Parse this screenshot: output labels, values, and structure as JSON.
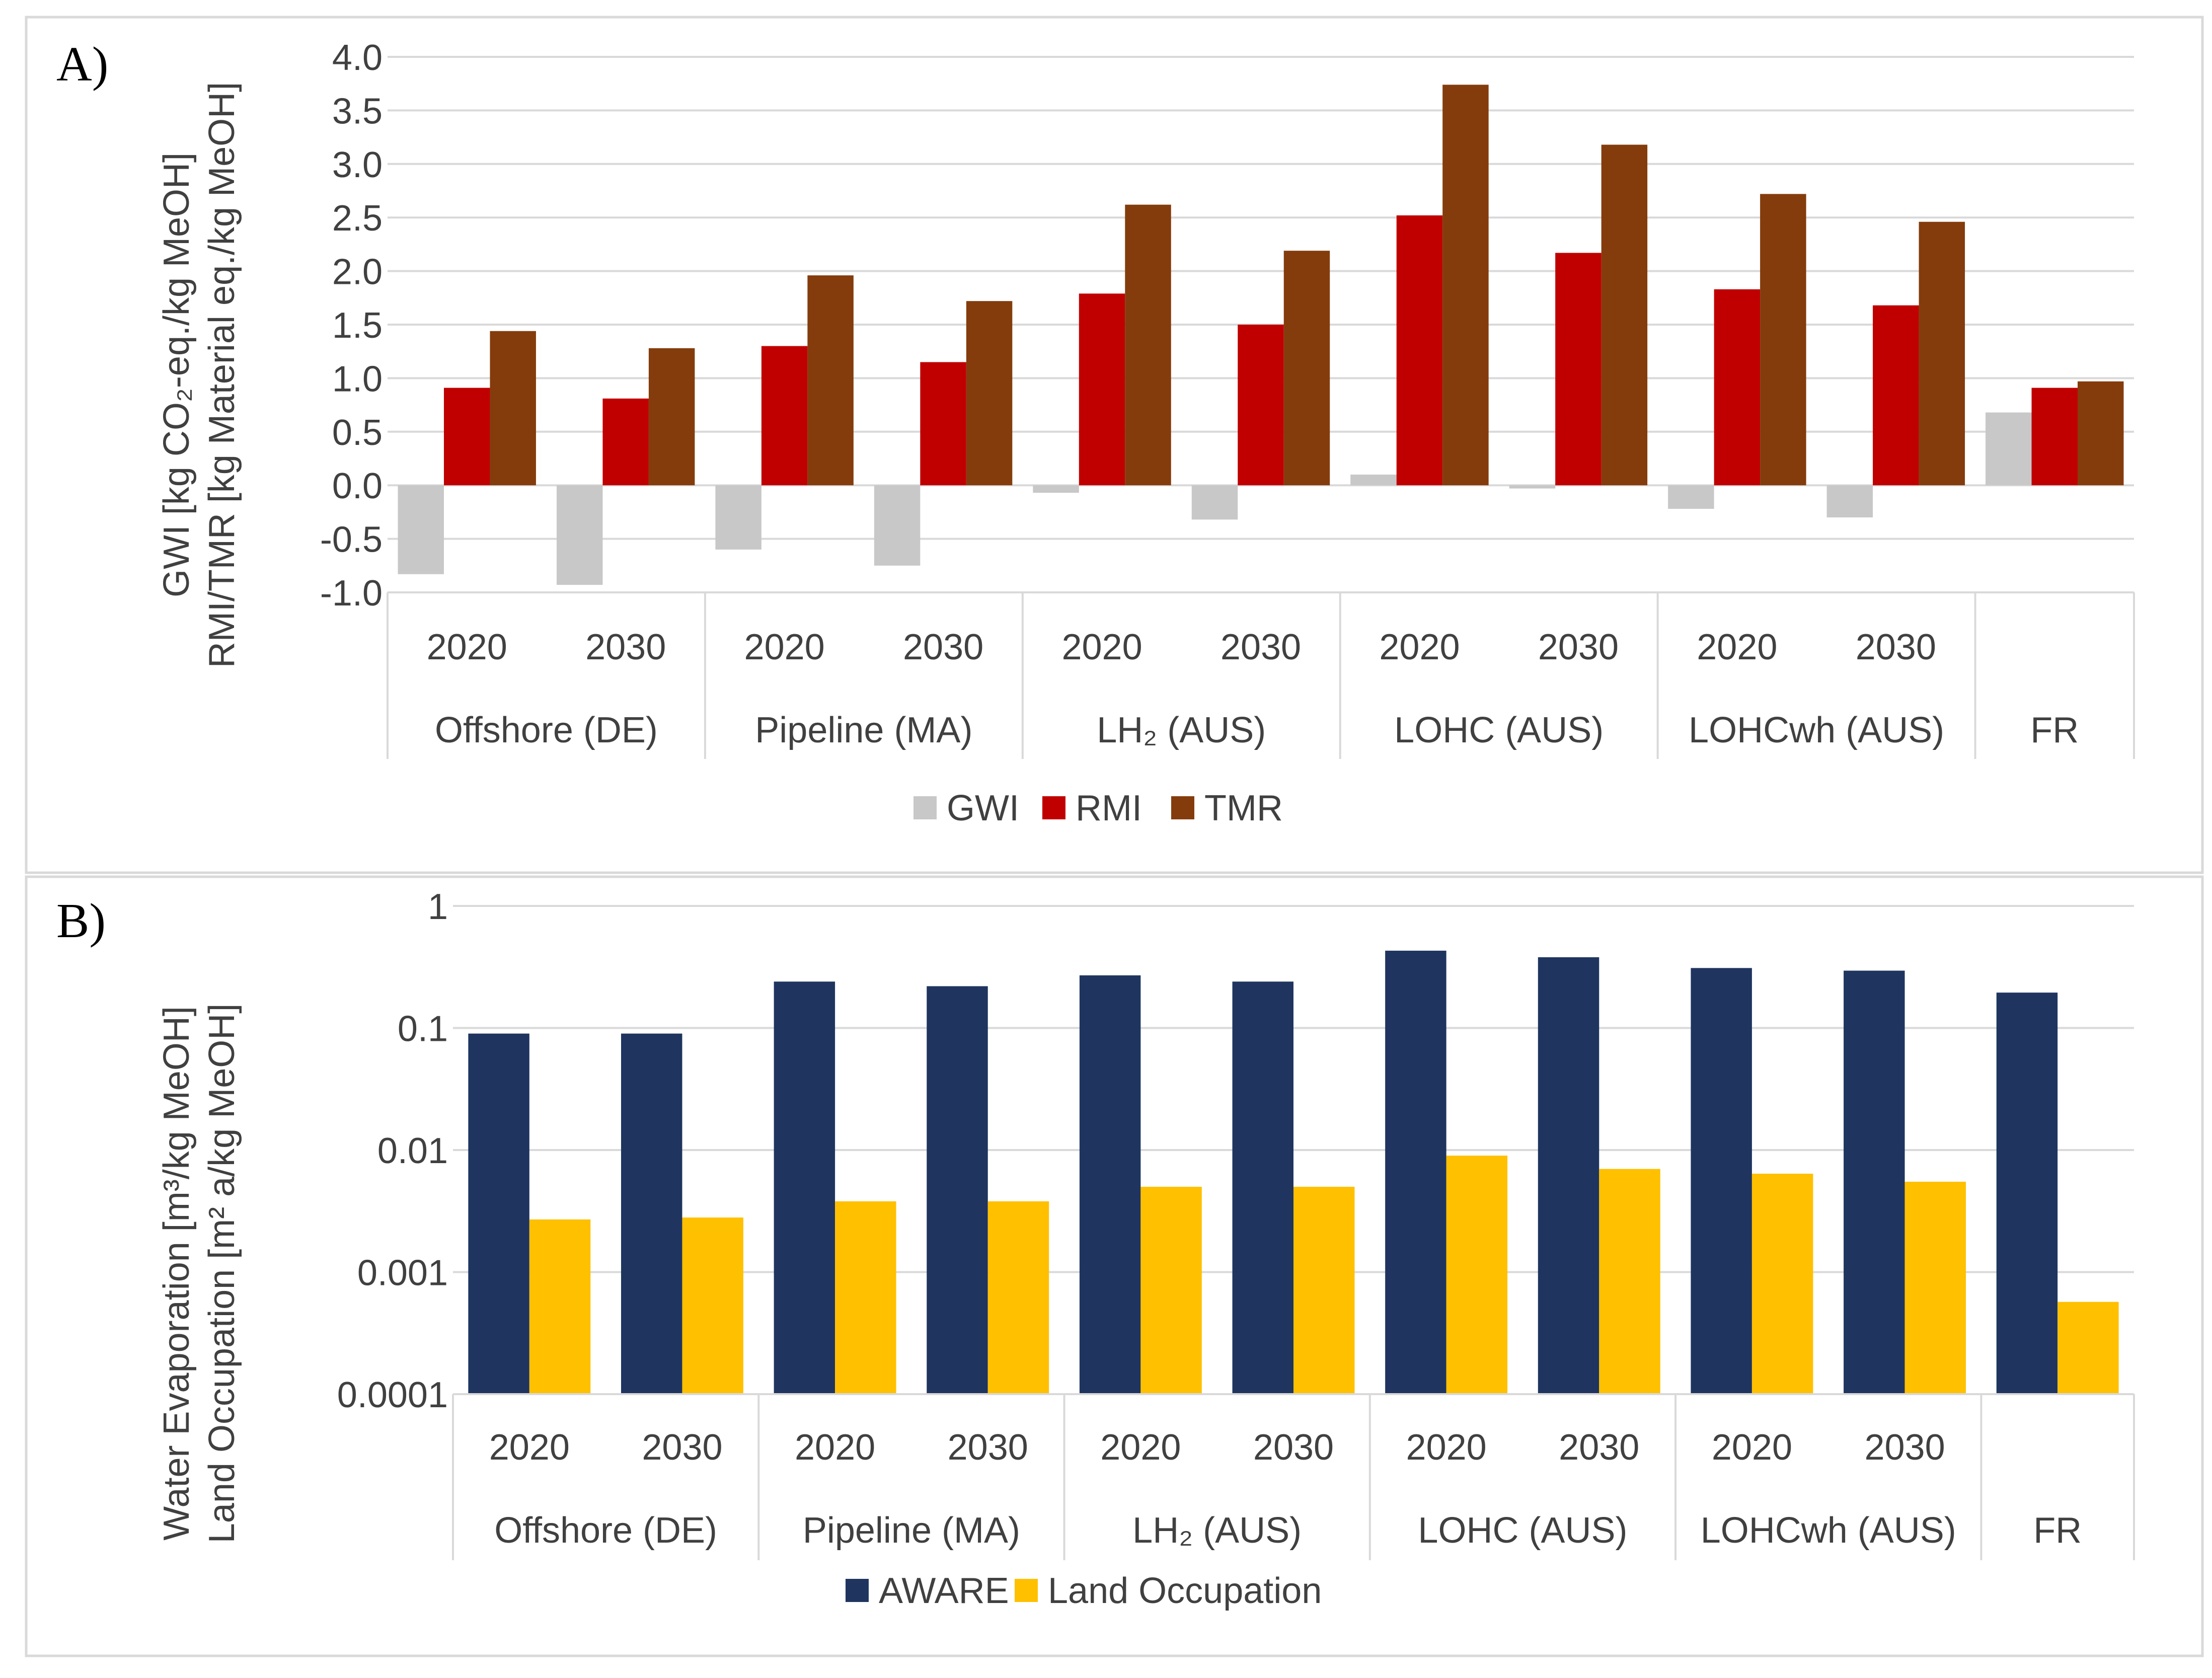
{
  "chart_data": [
    {
      "type": "bar",
      "panel_label": "A)",
      "ylabel_lines": [
        "GWI [kg CO₂-eq./kg MeOH]",
        "RMI/TMR [kg Material eq./kg MeOH]"
      ],
      "yticks": [
        "4.0",
        "3.5",
        "3.0",
        "2.5",
        "2.0",
        "1.5",
        "1.0",
        "0.5",
        "0.0",
        "-0.5",
        "-1.0"
      ],
      "ylim": [
        -1.0,
        4.0
      ],
      "grid": true,
      "groups": [
        {
          "label": "Offshore (DE)",
          "years": [
            "2020",
            "2030"
          ]
        },
        {
          "label": "Pipeline (MA)",
          "years": [
            "2020",
            "2030"
          ]
        },
        {
          "label": "LH₂ (AUS)",
          "years": [
            "2020",
            "2030"
          ]
        },
        {
          "label": "LOHC (AUS)",
          "years": [
            "2020",
            "2030"
          ]
        },
        {
          "label": "LOHCwh (AUS)",
          "years": [
            "2020",
            "2030"
          ]
        },
        {
          "label": "FR",
          "years": [
            ""
          ]
        }
      ],
      "series": [
        {
          "name": "GWI",
          "color": "#c8c8c8",
          "values": [
            -0.83,
            -0.93,
            -0.6,
            -0.75,
            -0.07,
            -0.32,
            0.1,
            -0.03,
            -0.22,
            -0.3,
            0.68
          ]
        },
        {
          "name": "RMI",
          "color": "#c00000",
          "values": [
            0.91,
            0.81,
            1.3,
            1.15,
            1.79,
            1.5,
            2.52,
            2.17,
            1.83,
            1.68,
            0.91
          ]
        },
        {
          "name": "TMR",
          "color": "#843c0c",
          "values": [
            1.44,
            1.28,
            1.96,
            1.72,
            2.62,
            2.19,
            3.74,
            3.18,
            2.72,
            2.46,
            0.97
          ]
        }
      ],
      "legend_position": "bottom"
    },
    {
      "type": "bar",
      "panel_label": "B)",
      "yscale": "log",
      "ylabel_lines": [
        "Water Evaporation [m³/kg MeOH]",
        "Land Occupation [m² a/kg MeOH]"
      ],
      "yticks": [
        "1",
        "0.1",
        "0.01",
        "0.001",
        "0.0001"
      ],
      "ylim": [
        0.0001,
        1
      ],
      "grid": true,
      "groups": [
        {
          "label": "Offshore (DE)",
          "years": [
            "2020",
            "2030"
          ]
        },
        {
          "label": "Pipeline (MA)",
          "years": [
            "2020",
            "2030"
          ]
        },
        {
          "label": "LH₂ (AUS)",
          "years": [
            "2020",
            "2030"
          ]
        },
        {
          "label": "LOHC (AUS)",
          "years": [
            "2020",
            "2030"
          ]
        },
        {
          "label": "LOHCwh (AUS)",
          "years": [
            "2020",
            "2030"
          ]
        },
        {
          "label": "FR",
          "years": [
            ""
          ]
        }
      ],
      "series": [
        {
          "name": "AWARE",
          "color": "#1f3560",
          "values": [
            0.09,
            0.09,
            0.24,
            0.22,
            0.27,
            0.24,
            0.43,
            0.38,
            0.31,
            0.295,
            0.195
          ]
        },
        {
          "name": "Land Occupation",
          "color": "#ffc000",
          "values": [
            0.0027,
            0.0028,
            0.0038,
            0.0038,
            0.005,
            0.005,
            0.009,
            0.007,
            0.0064,
            0.0055,
            0.00057
          ]
        }
      ],
      "legend_position": "bottom"
    }
  ]
}
